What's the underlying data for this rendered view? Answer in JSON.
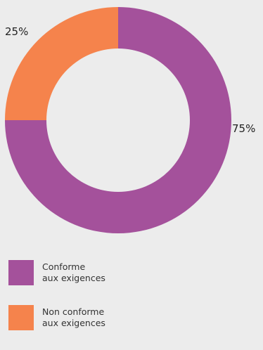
{
  "chart_data": {
    "type": "pie",
    "donut": true,
    "slices": [
      {
        "label": "Conforme aux exigences",
        "label_lines": [
          "Conforme",
          "aux exigences"
        ],
        "value": 75,
        "display": "75%",
        "color": "#a4519b"
      },
      {
        "label": "Non conforme aux exigences",
        "label_lines": [
          "Non conforme",
          "aux exigences"
        ],
        "value": 25,
        "display": "25%",
        "color": "#f5834c"
      }
    ],
    "legend_position": "bottom-left"
  },
  "colors": {
    "background": "#ececec",
    "text": "#222222"
  }
}
